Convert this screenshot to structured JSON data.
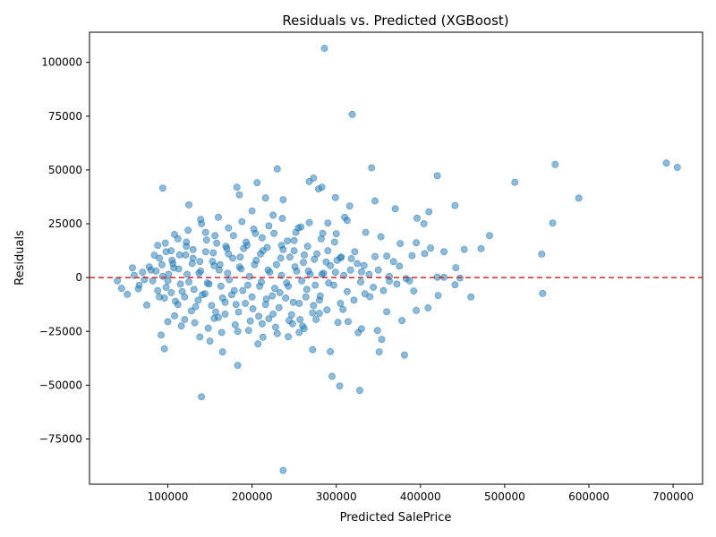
{
  "chart_data": {
    "type": "scatter",
    "title": "Residuals vs. Predicted (XGBoost)",
    "xlabel": "Predicted SalePrice",
    "ylabel": "Residuals",
    "xlim": [
      7000,
      735000
    ],
    "ylim": [
      -96000,
      114000
    ],
    "xticks": [
      100000,
      200000,
      300000,
      400000,
      500000,
      600000,
      700000
    ],
    "xtick_labels": [
      "100000",
      "200000",
      "300000",
      "400000",
      "500000",
      "600000",
      "700000"
    ],
    "yticks": [
      -75000,
      -50000,
      -25000,
      0,
      25000,
      50000,
      75000,
      100000
    ],
    "ytick_labels": [
      "−75000",
      "−50000",
      "−25000",
      "0",
      "25000",
      "50000",
      "75000",
      "100000"
    ],
    "reference_line": {
      "y": 0,
      "color": "#d62728",
      "style": "dashed"
    },
    "point_color": "#1f77b4",
    "point_opacity": 0.5,
    "grid": false,
    "points": [
      [
        286000,
        106500
      ],
      [
        319000,
        75800
      ],
      [
        692000,
        53200
      ],
      [
        705000,
        51200
      ],
      [
        560000,
        52600
      ],
      [
        342000,
        51000
      ],
      [
        230000,
        50500
      ],
      [
        512000,
        44300
      ],
      [
        420000,
        47300
      ],
      [
        588000,
        36900
      ],
      [
        94000,
        41500
      ],
      [
        182000,
        42000
      ],
      [
        206000,
        44100
      ],
      [
        268000,
        44600
      ],
      [
        273000,
        46200
      ],
      [
        283000,
        42000
      ],
      [
        279000,
        41200
      ],
      [
        185000,
        38500
      ],
      [
        216000,
        37000
      ],
      [
        237000,
        36200
      ],
      [
        299000,
        37200
      ],
      [
        316000,
        33300
      ],
      [
        346000,
        35600
      ],
      [
        370000,
        32000
      ],
      [
        396000,
        27600
      ],
      [
        410000,
        30600
      ],
      [
        441000,
        33500
      ],
      [
        557000,
        25400
      ],
      [
        125000,
        33800
      ],
      [
        139000,
        27000
      ],
      [
        160000,
        28000
      ],
      [
        200000,
        31000
      ],
      [
        225000,
        29000
      ],
      [
        310000,
        28000
      ],
      [
        313000,
        26500
      ],
      [
        404000,
        25000
      ],
      [
        482000,
        19500
      ],
      [
        472000,
        13400
      ],
      [
        452000,
        13100
      ],
      [
        544000,
        10900
      ],
      [
        428000,
        12000
      ],
      [
        390000,
        10200
      ],
      [
        376000,
        15800
      ],
      [
        360000,
        10000
      ],
      [
        335000,
        21000
      ],
      [
        290000,
        25400
      ],
      [
        300000,
        20400
      ],
      [
        255000,
        23000
      ],
      [
        250000,
        17200
      ],
      [
        442000,
        4600
      ],
      [
        412000,
        13700
      ],
      [
        395000,
        16200
      ],
      [
        405000,
        11100
      ],
      [
        375000,
        5300
      ],
      [
        368000,
        7400
      ],
      [
        353000,
        19000
      ],
      [
        322000,
        12000
      ],
      [
        330000,
        2600
      ],
      [
        545000,
        -7400
      ],
      [
        460000,
        -9000
      ],
      [
        441000,
        -3300
      ],
      [
        409000,
        -14100
      ],
      [
        395000,
        -15300
      ],
      [
        421000,
        -8300
      ],
      [
        392000,
        -6200
      ],
      [
        360000,
        -15900
      ],
      [
        378000,
        -20000
      ],
      [
        349000,
        -24600
      ],
      [
        351000,
        -34500
      ],
      [
        381000,
        -36000
      ],
      [
        354000,
        -28700
      ],
      [
        328000,
        -52400
      ],
      [
        295000,
        -45900
      ],
      [
        304000,
        -50400
      ],
      [
        293000,
        -34400
      ],
      [
        272000,
        -33500
      ],
      [
        330000,
        -23800
      ],
      [
        314000,
        -20500
      ],
      [
        302000,
        -20800
      ],
      [
        262000,
        -23700
      ],
      [
        237000,
        -89600
      ],
      [
        140000,
        -55400
      ],
      [
        183000,
        -40800
      ],
      [
        165000,
        -34500
      ],
      [
        150000,
        -29500
      ],
      [
        96000,
        -33100
      ],
      [
        92000,
        -26700
      ],
      [
        138000,
        -27600
      ],
      [
        183000,
        -25000
      ],
      [
        213000,
        -27700
      ],
      [
        243000,
        -27500
      ],
      [
        207000,
        -30800
      ],
      [
        230000,
        -26000
      ],
      [
        256000,
        -25500
      ],
      [
        326000,
        -25600
      ],
      [
        120000,
        -19500
      ],
      [
        108000,
        -17800
      ],
      [
        155000,
        -19000
      ],
      [
        168000,
        -17000
      ],
      [
        198000,
        -20200
      ],
      [
        220000,
        -19100
      ],
      [
        247000,
        -17300
      ],
      [
        280000,
        -16600
      ],
      [
        308000,
        -14800
      ],
      [
        340000,
        -8900
      ],
      [
        363000,
        -1600
      ],
      [
        383000,
        -500
      ],
      [
        58000,
        4500
      ],
      [
        65000,
        -5200
      ],
      [
        75000,
        -12800
      ],
      [
        84000,
        10400
      ],
      [
        88000,
        15000
      ],
      [
        97000,
        16000
      ],
      [
        104000,
        12500
      ],
      [
        112000,
        18000
      ],
      [
        122000,
        14500
      ],
      [
        130000,
        9000
      ],
      [
        145000,
        21000
      ],
      [
        158000,
        16000
      ],
      [
        172000,
        11000
      ],
      [
        190000,
        13500
      ],
      [
        212000,
        18500
      ],
      [
        235000,
        15000
      ],
      [
        262000,
        10500
      ],
      [
        288000,
        7200
      ],
      [
        305000,
        9200
      ],
      [
        318000,
        8800
      ],
      [
        333000,
        5600
      ],
      [
        346000,
        9800
      ],
      [
        40000,
        -1500
      ],
      [
        45000,
        -5000
      ],
      [
        52000,
        -7800
      ],
      [
        60000,
        1000
      ],
      [
        66000,
        -3500
      ],
      [
        70000,
        2500
      ],
      [
        78000,
        5000
      ],
      [
        82000,
        -1500
      ],
      [
        86000,
        3000
      ],
      [
        90000,
        -9000
      ],
      [
        93000,
        6000
      ],
      [
        98000,
        -4500
      ],
      [
        101000,
        1500
      ],
      [
        105000,
        8000
      ],
      [
        109000,
        -11000
      ],
      [
        113000,
        4000
      ],
      [
        117000,
        -6500
      ],
      [
        121000,
        10500
      ],
      [
        125000,
        -2000
      ],
      [
        129000,
        6500
      ],
      [
        133000,
        -13500
      ],
      [
        137000,
        2000
      ],
      [
        141000,
        -8000
      ],
      [
        145000,
        12000
      ],
      [
        149000,
        -3000
      ],
      [
        153000,
        7500
      ],
      [
        157000,
        -16000
      ],
      [
        161000,
        3500
      ],
      [
        165000,
        -9500
      ],
      [
        169000,
        14500
      ],
      [
        173000,
        -1000
      ],
      [
        177000,
        9000
      ],
      [
        181000,
        -12500
      ],
      [
        185000,
        5000
      ],
      [
        189000,
        -6000
      ],
      [
        193000,
        16500
      ],
      [
        197000,
        500
      ],
      [
        201000,
        -14500
      ],
      [
        205000,
        8000
      ],
      [
        209000,
        -4000
      ],
      [
        213000,
        12500
      ],
      [
        217000,
        -10000
      ],
      [
        221000,
        2500
      ],
      [
        225000,
        -17000
      ],
      [
        229000,
        6000
      ],
      [
        233000,
        -7000
      ],
      [
        237000,
        13000
      ],
      [
        241000,
        -2500
      ],
      [
        245000,
        9500
      ],
      [
        249000,
        -11500
      ],
      [
        253000,
        3000
      ],
      [
        257000,
        -19500
      ],
      [
        261000,
        7000
      ],
      [
        265000,
        -5500
      ],
      [
        269000,
        1500
      ],
      [
        273000,
        -13000
      ],
      [
        277000,
        11000
      ],
      [
        281000,
        -8500
      ],
      [
        285000,
        2000
      ],
      [
        289000,
        -15000
      ],
      [
        293000,
        5500
      ],
      [
        297000,
        -3500
      ],
      [
        301000,
        8000
      ],
      [
        305000,
        -12000
      ],
      [
        309000,
        1000
      ],
      [
        313000,
        -6500
      ],
      [
        317000,
        3500
      ],
      [
        321000,
        -10500
      ],
      [
        325000,
        6500
      ],
      [
        329000,
        -2000
      ],
      [
        334000,
        -7500
      ],
      [
        339000,
        1500
      ],
      [
        344000,
        -4500
      ],
      [
        350000,
        3500
      ],
      [
        356000,
        -6000
      ],
      [
        363000,
        500
      ],
      [
        372000,
        -3000
      ],
      [
        387000,
        -1500
      ],
      [
        420000,
        200
      ],
      [
        428000,
        100
      ],
      [
        447000,
        -200
      ],
      [
        72000,
        -1000
      ],
      [
        80000,
        3500
      ],
      [
        94000,
        500
      ],
      [
        100000,
        -1500
      ],
      [
        107000,
        4500
      ],
      [
        115000,
        -3000
      ],
      [
        123000,
        1500
      ],
      [
        131000,
        -5500
      ],
      [
        139000,
        3000
      ],
      [
        147000,
        -2500
      ],
      [
        155000,
        5500
      ],
      [
        163000,
        -4000
      ],
      [
        171000,
        2000
      ],
      [
        179000,
        -6000
      ],
      [
        187000,
        4000
      ],
      [
        195000,
        -3500
      ],
      [
        203000,
        6000
      ],
      [
        211000,
        -2000
      ],
      [
        219000,
        3500
      ],
      [
        227000,
        -5000
      ],
      [
        235000,
        1000
      ],
      [
        243000,
        -4000
      ],
      [
        251000,
        5000
      ],
      [
        259000,
        -1500
      ],
      [
        267000,
        3000
      ],
      [
        275000,
        -3500
      ],
      [
        283000,
        1500
      ],
      [
        291000,
        -2500
      ],
      [
        299000,
        2500
      ],
      [
        88000,
        -6000
      ],
      [
        96000,
        -9500
      ],
      [
        104000,
        -7000
      ],
      [
        112000,
        -12500
      ],
      [
        120000,
        -9000
      ],
      [
        128000,
        -15500
      ],
      [
        136000,
        -10500
      ],
      [
        144000,
        -7500
      ],
      [
        152000,
        -13000
      ],
      [
        160000,
        -18500
      ],
      [
        168000,
        -11500
      ],
      [
        176000,
        -8000
      ],
      [
        184000,
        -16000
      ],
      [
        192000,
        -12000
      ],
      [
        200000,
        -9000
      ],
      [
        208000,
        -18000
      ],
      [
        216000,
        -12500
      ],
      [
        224000,
        -8500
      ],
      [
        232000,
        -14000
      ],
      [
        240000,
        -9500
      ],
      [
        248000,
        -21500
      ],
      [
        256000,
        -12000
      ],
      [
        264000,
        -9000
      ],
      [
        272000,
        -16500
      ],
      [
        280000,
        -10500
      ],
      [
        90000,
        9000
      ],
      [
        98000,
        12000
      ],
      [
        106000,
        6500
      ],
      [
        114000,
        10500
      ],
      [
        122000,
        16500
      ],
      [
        130000,
        13000
      ],
      [
        138000,
        7500
      ],
      [
        146000,
        17500
      ],
      [
        154000,
        11500
      ],
      [
        162000,
        6000
      ],
      [
        170000,
        13500
      ],
      [
        178000,
        19500
      ],
      [
        186000,
        9500
      ],
      [
        194000,
        15000
      ],
      [
        202000,
        22500
      ],
      [
        210000,
        11000
      ],
      [
        218000,
        14000
      ],
      [
        226000,
        20500
      ],
      [
        234000,
        9000
      ],
      [
        242000,
        17000
      ],
      [
        250000,
        12500
      ],
      [
        258000,
        23500
      ],
      [
        266000,
        14500
      ],
      [
        274000,
        8500
      ],
      [
        282000,
        18000
      ],
      [
        290000,
        12500
      ],
      [
        298000,
        16500
      ],
      [
        306000,
        9500
      ],
      [
        100000,
        -20500
      ],
      [
        116000,
        -22500
      ],
      [
        132000,
        -21000
      ],
      [
        148000,
        -23500
      ],
      [
        164000,
        -25500
      ],
      [
        180000,
        -22000
      ],
      [
        196000,
        -24500
      ],
      [
        212000,
        -21500
      ],
      [
        228000,
        -23000
      ],
      [
        244000,
        -20000
      ],
      [
        260000,
        -22500
      ],
      [
        276000,
        -19500
      ],
      [
        108000,
        20000
      ],
      [
        124000,
        22000
      ],
      [
        140000,
        25000
      ],
      [
        156000,
        19500
      ],
      [
        172000,
        23000
      ],
      [
        188000,
        26000
      ],
      [
        204000,
        20500
      ],
      [
        220000,
        24000
      ],
      [
        236000,
        27500
      ],
      [
        252000,
        21000
      ],
      [
        268000,
        25500
      ],
      [
        284000,
        20500
      ]
    ]
  }
}
